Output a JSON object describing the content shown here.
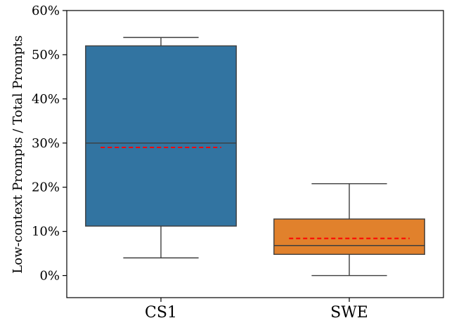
{
  "chart_data": {
    "type": "box",
    "categories": [
      "CS1",
      "SWE"
    ],
    "ylabel": "Low-context Prompts / Total Prompts",
    "xlabel": "",
    "ylim": [
      -0.05,
      0.6
    ],
    "yticks": [
      0,
      0.1,
      0.2,
      0.3,
      0.4,
      0.5,
      0.6
    ],
    "ytick_labels": [
      "0%",
      "10%",
      "20%",
      "30%",
      "40%",
      "50%",
      "60%"
    ],
    "grid": false,
    "series": [
      {
        "category": "CS1",
        "whisker_low": 0.04,
        "q1": 0.112,
        "median": 0.3,
        "q3": 0.52,
        "whisker_high": 0.539,
        "mean": 0.29,
        "color": "#3274a1"
      },
      {
        "category": "SWE",
        "whisker_low": 0.0,
        "q1": 0.048,
        "median": 0.068,
        "q3": 0.128,
        "whisker_high": 0.208,
        "mean": 0.084,
        "color": "#e1812c"
      }
    ],
    "mean_line_color": "#ff0000",
    "box_edge_color": "#3d3d3d"
  }
}
